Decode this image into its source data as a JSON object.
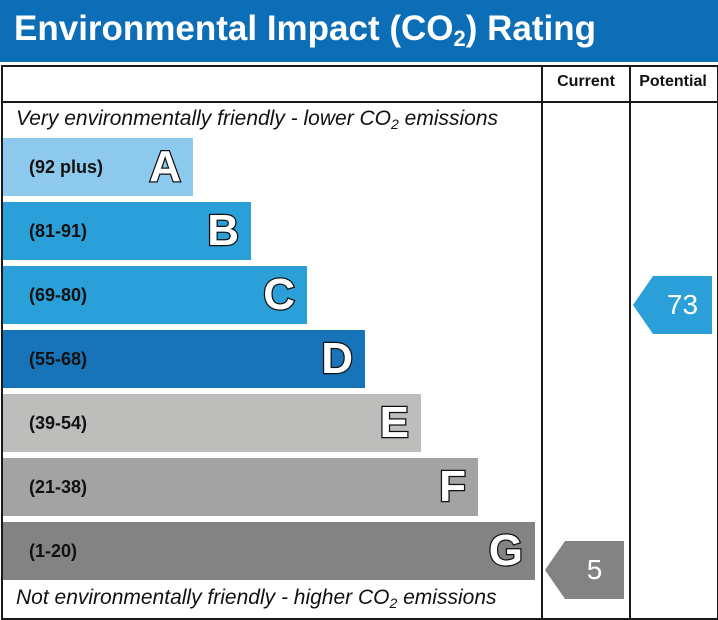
{
  "header": {
    "title_pre": "Environmental Impact (CO",
    "title_sub": "2",
    "title_post": ") Rating",
    "bg": "#0c6eb6"
  },
  "columns": {
    "current": "Current",
    "potential": "Potential"
  },
  "top_note": {
    "pre": "Very environmentally friendly - lower CO",
    "sub": "2",
    "post": " emissions"
  },
  "bottom_note": {
    "pre": "Not environmentally friendly - higher CO",
    "sub": "2",
    "post": " emissions"
  },
  "bands": [
    {
      "letter": "A",
      "range": "(92 plus)",
      "color": "#8dc9ec"
    },
    {
      "letter": "B",
      "range": "(81-91)",
      "color": "#2a9fd8"
    },
    {
      "letter": "C",
      "range": "(69-80)",
      "color": "#2a9fd8"
    },
    {
      "letter": "D",
      "range": "(55-68)",
      "color": "#1874b8"
    },
    {
      "letter": "E",
      "range": "(39-54)",
      "color": "#bdbdbb"
    },
    {
      "letter": "F",
      "range": "(21-38)",
      "color": "#a3a3a3"
    },
    {
      "letter": "G",
      "range": "(1-20)",
      "color": "#838383"
    }
  ],
  "current": {
    "value": "5",
    "band": "G",
    "color": "#838383"
  },
  "potential": {
    "value": "73",
    "band": "C",
    "color": "#2a9fd8"
  }
}
